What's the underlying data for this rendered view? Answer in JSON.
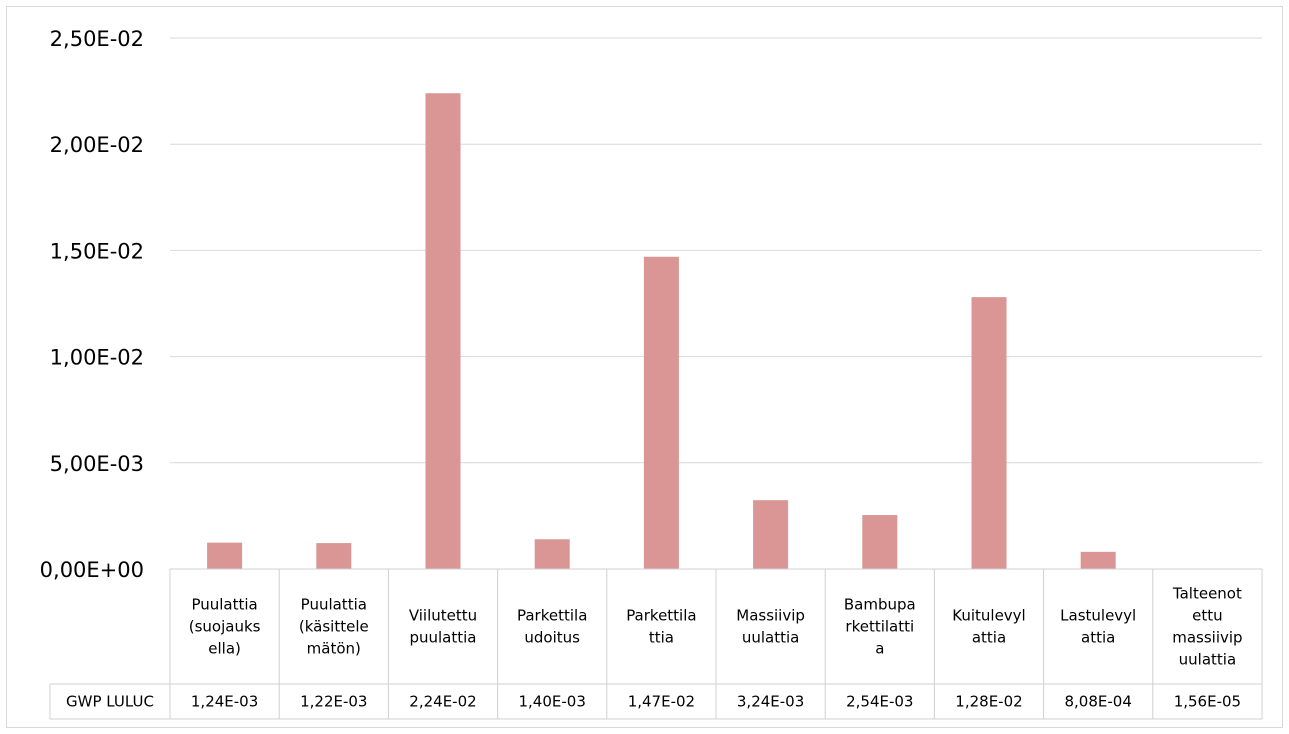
{
  "chart_data": {
    "type": "bar",
    "categories": [
      [
        "Puulattia",
        "(suojauks",
        "ella)"
      ],
      [
        "Puulattia",
        "(käsittele",
        "mätön)"
      ],
      [
        "Viilutettu",
        "puulattia"
      ],
      [
        "Parkettila",
        "udoitus"
      ],
      [
        "Parkettila",
        "ttia"
      ],
      [
        "Massiivip",
        "uulattia"
      ],
      [
        "Bambupa",
        "rkettilatti",
        "a"
      ],
      [
        "Kuitulevyl",
        "attia"
      ],
      [
        "Lastulevyl",
        "attia"
      ],
      [
        "Talteenot",
        "ettu",
        "massiivip",
        "uulattia"
      ]
    ],
    "series": [
      {
        "name": "GWP LULUC",
        "values": [
          0.00124,
          0.00122,
          0.0224,
          0.0014,
          0.0147,
          0.00324,
          0.00254,
          0.0128,
          0.000808,
          1.56e-05
        ],
        "labels": [
          "1,24E-03",
          "1,22E-03",
          "2,24E-02",
          "1,40E-03",
          "1,47E-02",
          "3,24E-03",
          "2,54E-03",
          "1,28E-02",
          "8,08E-04",
          "1,56E-05"
        ],
        "color": "#d99694"
      }
    ],
    "yticks": [
      {
        "value": 0,
        "label": "0,00E+00"
      },
      {
        "value": 0.005,
        "label": "5,00E-03"
      },
      {
        "value": 0.01,
        "label": "1,00E-02"
      },
      {
        "value": 0.015,
        "label": "1,50E-02"
      },
      {
        "value": 0.02,
        "label": "2,00E-02"
      },
      {
        "value": 0.025,
        "label": "2,50E-02"
      }
    ],
    "ylim": [
      0,
      0.025
    ],
    "grid": true,
    "legend": "data-table",
    "gridColor": "#d9d9d9",
    "tableBorderColor": "#d0d0d0"
  }
}
